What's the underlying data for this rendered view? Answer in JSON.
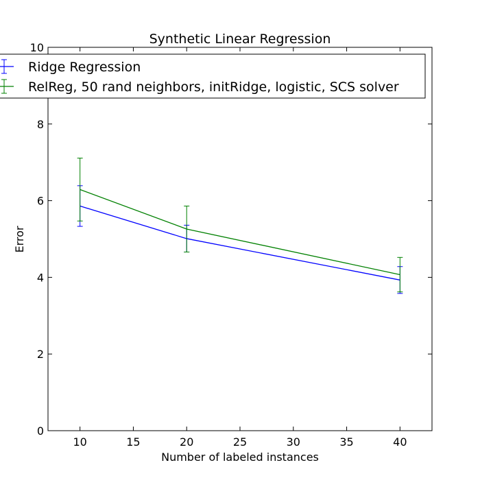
{
  "chart_data": {
    "type": "line",
    "title": "Synthetic Linear Regression",
    "xlabel": "Number of labeled instances",
    "ylabel": "Error",
    "xlim": [
      7,
      43
    ],
    "ylim": [
      0,
      10
    ],
    "xticks": [
      10,
      15,
      20,
      25,
      30,
      35,
      40
    ],
    "yticks": [
      0,
      2,
      4,
      6,
      8,
      10
    ],
    "grid": false,
    "legend_position": "top-left",
    "series": [
      {
        "name": "Ridge Regression",
        "color": "#0000ff",
        "x": [
          10,
          20,
          40
        ],
        "y": [
          5.86,
          5.01,
          3.93
        ],
        "err": [
          0.53,
          0.35,
          0.35
        ]
      },
      {
        "name": "RelReg, 50 rand neighbors, initRidge, logistic, SCS solver",
        "color": "#008000",
        "x": [
          10,
          20,
          40
        ],
        "y": [
          6.29,
          5.26,
          4.07
        ],
        "err": [
          0.82,
          0.6,
          0.45
        ]
      }
    ]
  }
}
